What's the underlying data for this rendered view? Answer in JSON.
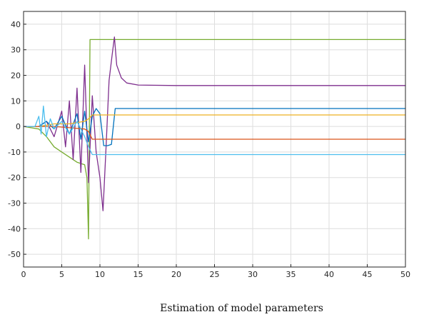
{
  "chart_data": {
    "type": "line",
    "title": "",
    "caption": "Estimation of model parameters",
    "xlabel": "",
    "ylabel": "",
    "xlim": [
      0,
      50
    ],
    "ylim": [
      -55,
      45
    ],
    "x_ticks": [
      "0",
      "5",
      "10",
      "15",
      "20",
      "25",
      "30",
      "35",
      "40",
      "45",
      "50"
    ],
    "y_ticks": [
      "40",
      "30",
      "20",
      "10",
      "0",
      "-10",
      "-20",
      "-30",
      "-40",
      "-50"
    ],
    "grid": true,
    "series": [
      {
        "color": "#77AC30",
        "x": [
          0,
          2,
          3,
          4,
          5,
          6,
          7,
          7.5,
          8,
          8.3,
          8.5,
          8.7,
          9,
          10,
          20,
          30,
          40,
          50
        ],
        "y": [
          0,
          -1,
          -4,
          -8,
          -10,
          -12,
          -14,
          -14.5,
          -15,
          -20,
          -44,
          34,
          34,
          34,
          34,
          34,
          34,
          34
        ]
      },
      {
        "color": "#7E2F8E",
        "x": [
          0,
          2,
          3,
          4,
          5,
          5.5,
          6,
          6.5,
          7,
          7.5,
          8,
          8.5,
          9,
          9.5,
          10,
          10.4,
          10.8,
          11.2,
          11.6,
          11.9,
          12.2,
          12.8,
          13.5,
          15,
          20,
          30,
          40,
          50
        ],
        "y": [
          0,
          0,
          2,
          -4,
          6,
          -8,
          10,
          -13,
          15,
          -18,
          24,
          -22,
          12,
          -10,
          -20,
          -33,
          -8,
          18,
          28,
          35,
          24,
          19,
          17,
          16.2,
          16,
          16,
          16,
          16
        ]
      },
      {
        "color": "#0072BD",
        "x": [
          0,
          2,
          3,
          4,
          5,
          6,
          7,
          7.5,
          8,
          8.5,
          9,
          9.5,
          10,
          10.5,
          11,
          11.5,
          12,
          13,
          20,
          30,
          40,
          50
        ],
        "y": [
          0,
          0,
          2,
          -1,
          4,
          -3,
          5,
          -5,
          6,
          -6,
          4,
          7,
          5,
          -7.5,
          -7.5,
          -7,
          7,
          7,
          7,
          7,
          7,
          7
        ]
      },
      {
        "color": "#EDB120",
        "x": [
          0,
          2,
          4,
          6,
          8,
          8.5,
          9,
          10,
          20,
          30,
          40,
          50
        ],
        "y": [
          0,
          0,
          1,
          1,
          2,
          3,
          4.5,
          4.5,
          4.5,
          4.5,
          4.5,
          4.5
        ]
      },
      {
        "color": "#D95319",
        "x": [
          0,
          2,
          4,
          6,
          8,
          8.5,
          9,
          10,
          20,
          30,
          40,
          50
        ],
        "y": [
          0,
          0,
          0,
          -0.5,
          -1,
          -2,
          -5,
          -5,
          -5,
          -5,
          -5,
          -5
        ]
      },
      {
        "color": "#4DBEEE",
        "x": [
          0,
          1.5,
          2,
          2.3,
          2.6,
          3,
          3.5,
          4,
          5,
          6,
          7,
          8,
          8.5,
          9,
          10,
          20,
          30,
          40,
          50
        ],
        "y": [
          0,
          0,
          4,
          -3,
          8,
          -4,
          3,
          -1,
          2,
          -3,
          2,
          -4,
          -8,
          -11,
          -11,
          -11,
          -11,
          -11,
          -11
        ]
      }
    ]
  }
}
